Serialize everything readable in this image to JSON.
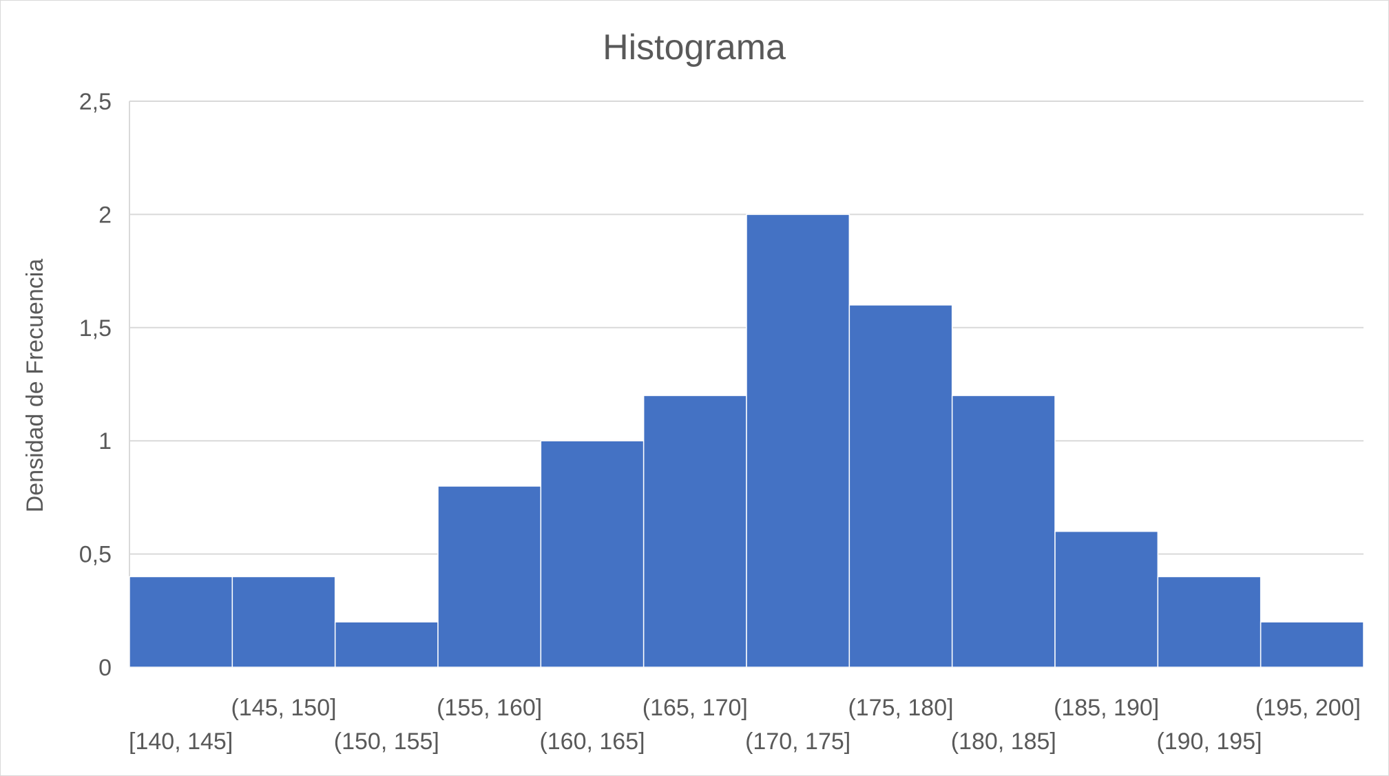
{
  "chart_data": {
    "type": "bar",
    "title": "Histograma",
    "xlabel": "",
    "ylabel": "Densidad de Frecuencia",
    "categories": [
      "[140, 145]",
      "(145, 150]",
      "(150, 155]",
      "(155, 160]",
      "(160, 165]",
      "(165, 170]",
      "(170, 175]",
      "(175, 180]",
      "(180, 185]",
      "(185, 190]",
      "(190, 195]",
      "(195, 200]"
    ],
    "values": [
      0.4,
      0.4,
      0.2,
      0.8,
      1.0,
      1.2,
      2.0,
      1.6,
      1.2,
      0.6,
      0.4,
      0.2
    ],
    "ylim": [
      0,
      2.5
    ],
    "yticks": [
      "0",
      "0,5",
      "1",
      "1,5",
      "2",
      "2,5"
    ],
    "grid": true,
    "legend": "none",
    "bar_color": "#4472C4",
    "gridline_color": "#d9d9d9",
    "text_color": "#595959"
  }
}
